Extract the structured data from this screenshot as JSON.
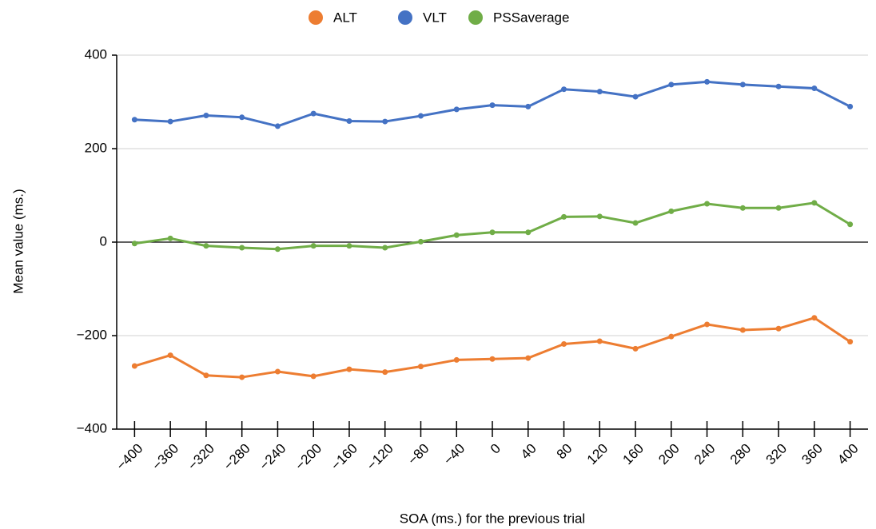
{
  "chart_data": {
    "type": "line",
    "x_label": "SOA (ms.) for the previous trial",
    "y_label": "Mean value (ms.)",
    "x": [
      -400,
      -360,
      -320,
      -280,
      -240,
      -200,
      -160,
      -120,
      -80,
      -40,
      0,
      40,
      80,
      120,
      160,
      200,
      240,
      280,
      320,
      360,
      400
    ],
    "series": [
      {
        "name": "ALT",
        "color": "#ed7d31",
        "values": [
          -265,
          -242,
          -285,
          -289,
          -277,
          -287,
          -272,
          -278,
          -266,
          -252,
          -250,
          -248,
          -218,
          -212,
          -228,
          -202,
          -176,
          -188,
          -185,
          -162,
          -213
        ]
      },
      {
        "name": "VLT",
        "color": "#4472c4",
        "values": [
          262,
          258,
          271,
          267,
          248,
          275,
          259,
          258,
          270,
          284,
          293,
          290,
          327,
          322,
          311,
          337,
          343,
          337,
          333,
          329,
          290
        ]
      },
      {
        "name": "PSSaverage",
        "color": "#70ad47",
        "values": [
          -3,
          8,
          -8,
          -12,
          -15,
          -8,
          -8,
          -12,
          1,
          15,
          21,
          21,
          54,
          55,
          41,
          66,
          82,
          73,
          73,
          84,
          38
        ]
      }
    ],
    "xlim": [
      -420,
      420
    ],
    "xticks": [
      {
        "value": -400,
        "label": "−400"
      },
      {
        "value": -360,
        "label": "−360"
      },
      {
        "value": -320,
        "label": "−320"
      },
      {
        "value": -280,
        "label": "−280"
      },
      {
        "value": -240,
        "label": "−240"
      },
      {
        "value": -200,
        "label": "−200"
      },
      {
        "value": -160,
        "label": "−160"
      },
      {
        "value": -120,
        "label": "−120"
      },
      {
        "value": -80,
        "label": "−80"
      },
      {
        "value": -40,
        "label": "−40"
      },
      0,
      40,
      80,
      120,
      160,
      200,
      240,
      280,
      320,
      360,
      400
    ],
    "ylim": [
      -400,
      400
    ],
    "yticks": [
      {
        "value": -400,
        "label": "−400"
      },
      {
        "value": -200,
        "label": "−200"
      },
      0,
      200,
      400
    ],
    "grid": true,
    "legend": "top"
  }
}
